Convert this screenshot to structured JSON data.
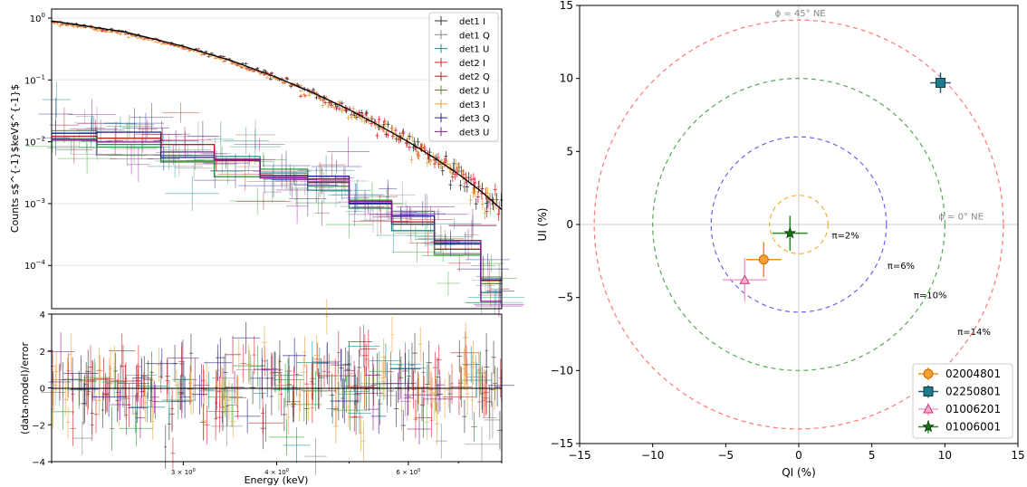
{
  "chart_data": [
    {
      "type": "line",
      "panel": "spectrum",
      "xscale": "log",
      "yscale": "log",
      "xlim": [
        2.0,
        8.0
      ],
      "ylim": [
        2e-05,
        1.4
      ],
      "ylabel": "Counts s$^{-1}$keV$^{-1}$",
      "yticks": [
        {
          "value": 1,
          "base": "10",
          "exp": "0"
        },
        {
          "value": 0.1,
          "base": "10",
          "exp": "−1"
        },
        {
          "value": 0.01,
          "base": "10",
          "exp": "−2"
        },
        {
          "value": 0.001,
          "base": "10",
          "exp": "−3"
        },
        {
          "value": 0.0001,
          "base": "10",
          "exp": "−4"
        }
      ],
      "legend": {
        "position": "top-right",
        "entries": [
          "det1 I",
          "det1 Q",
          "det1 U",
          "det2 I",
          "det2 Q",
          "det2 U",
          "det3 I",
          "det3 Q",
          "det3 U"
        ]
      },
      "series": [
        {
          "name": "det1 I",
          "color": "#333333",
          "kind": "I",
          "scale": 1.0
        },
        {
          "name": "det1 Q",
          "color": "#888888",
          "kind": "QU",
          "scale": 1.0
        },
        {
          "name": "det1 U",
          "color": "#1a8c8c",
          "kind": "QU",
          "scale": 0.95
        },
        {
          "name": "det2 I",
          "color": "#d62728",
          "kind": "I",
          "scale": 0.97
        },
        {
          "name": "det2 Q",
          "color": "#b22222",
          "kind": "QU",
          "scale": 1.05
        },
        {
          "name": "det2 U",
          "color": "#2ca02c",
          "kind": "QU",
          "scale": 0.9
        },
        {
          "name": "det3 I",
          "color": "#e8a33a",
          "kind": "I",
          "scale": 0.93
        },
        {
          "name": "det3 Q",
          "color": "#1f1f8c",
          "kind": "QU",
          "scale": 1.1
        },
        {
          "name": "det3 U",
          "color": "#8c1a8c",
          "kind": "QU",
          "scale": 1.0
        }
      ],
      "stokes_I_model": [
        {
          "x": 2.0,
          "y": 0.9
        },
        {
          "x": 2.5,
          "y": 0.6
        },
        {
          "x": 3.0,
          "y": 0.35
        },
        {
          "x": 3.5,
          "y": 0.2
        },
        {
          "x": 4.0,
          "y": 0.11
        },
        {
          "x": 4.5,
          "y": 0.06
        },
        {
          "x": 5.0,
          "y": 0.033
        },
        {
          "x": 5.5,
          "y": 0.018
        },
        {
          "x": 6.0,
          "y": 0.01
        },
        {
          "x": 6.5,
          "y": 0.0055
        },
        {
          "x": 7.0,
          "y": 0.003
        },
        {
          "x": 7.5,
          "y": 0.0016
        },
        {
          "x": 8.0,
          "y": 0.0008
        }
      ],
      "stokes_QU_steps": [
        {
          "x": [
            2.0,
            2.3
          ],
          "y": 0.012
        },
        {
          "x": [
            2.3,
            2.8
          ],
          "y": 0.0095
        },
        {
          "x": [
            2.8,
            3.3
          ],
          "y": 0.0072
        },
        {
          "x": [
            3.3,
            3.8
          ],
          "y": 0.0048
        },
        {
          "x": [
            3.8,
            4.4
          ],
          "y": 0.0032
        },
        {
          "x": [
            4.4,
            5.0
          ],
          "y": 0.002
        },
        {
          "x": [
            5.0,
            5.7
          ],
          "y": 0.0011
        },
        {
          "x": [
            5.7,
            6.5
          ],
          "y": 0.00055
        },
        {
          "x": [
            6.5,
            7.5
          ],
          "y": 0.00018
        },
        {
          "x": [
            7.5,
            8.0
          ],
          "y": 5e-05
        }
      ]
    },
    {
      "type": "scatter",
      "panel": "residuals",
      "xscale": "log",
      "xlim": [
        2.0,
        8.0
      ],
      "ylim": [
        -4,
        4
      ],
      "xlabel": "Energy (keV)",
      "ylabel": "(data-model)/error",
      "yticks": [
        "4",
        "2",
        "0",
        "−2",
        "−4"
      ],
      "xticks": [
        {
          "value": 3,
          "mant": "3 × 10",
          "exp": "0"
        },
        {
          "value": 4,
          "mant": "4 × 10",
          "exp": "0"
        },
        {
          "value": 6,
          "mant": "6 × 10",
          "exp": "0"
        }
      ]
    },
    {
      "type": "scatter",
      "panel": "polarization",
      "xlabel": "QI (%)",
      "ylabel": "UI (%)",
      "xlim": [
        -15,
        15
      ],
      "ylim": [
        -15,
        15
      ],
      "xticks": [
        "−15",
        "−10",
        "−5",
        "0",
        "5",
        "10",
        "15"
      ],
      "yticks": [
        "15",
        "10",
        "5",
        "0",
        "−5",
        "−10",
        "−15"
      ],
      "legend": {
        "position": "bottom-right"
      },
      "circles": [
        {
          "r": 2,
          "color": "#f0b030",
          "label": "π=2%",
          "lx": 3.2,
          "ly": -0.7
        },
        {
          "r": 6,
          "color": "#6666ee",
          "label": "π=6%",
          "lx": 7.0,
          "ly": -2.8
        },
        {
          "r": 10,
          "color": "#55aa55",
          "label": "π=10%",
          "lx": 9.0,
          "ly": -4.8
        },
        {
          "r": 14,
          "color": "#ff7777",
          "label": "π=14%",
          "lx": 12.0,
          "ly": -7.3
        }
      ],
      "annotations": [
        {
          "text": "ϕ = 45° NE",
          "x": 0.1,
          "y": 14.5
        },
        {
          "text": "ϕ = 0° NE",
          "x": 11.1,
          "y": 0.6
        }
      ],
      "series": [
        {
          "name": "02004801",
          "marker": "circle",
          "color": "#f5a030",
          "edge": "#cc6600",
          "x": -2.4,
          "y": -2.4,
          "xerr": 1.2,
          "yerr": 1.2
        },
        {
          "name": "02250801",
          "marker": "square",
          "color": "#1f7a8c",
          "edge": "#0b3d49",
          "x": 9.7,
          "y": 9.7,
          "xerr": 0.7,
          "yerr": 0.7
        },
        {
          "name": "01006201",
          "marker": "triangle",
          "color": "#f9b0d0",
          "edge": "#cc3377",
          "x": -3.7,
          "y": -3.8,
          "xerr": 1.5,
          "yerr": 1.5
        },
        {
          "name": "01006001",
          "marker": "star",
          "color": "#1a6b1a",
          "edge": "#0a3a0a",
          "x": -0.6,
          "y": -0.6,
          "xerr": 1.2,
          "yerr": 1.2
        }
      ]
    }
  ]
}
